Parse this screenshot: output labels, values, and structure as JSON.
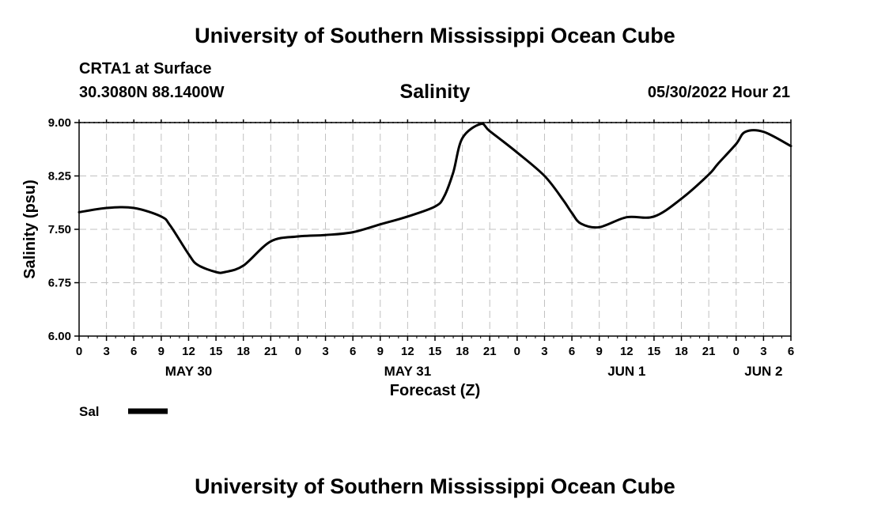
{
  "header": {
    "title": "University of Southern Mississippi Ocean Cube",
    "station": "CRTA1 at Surface",
    "coords": "30.3080N  88.1400W",
    "datetime": "05/30/2022 Hour 21"
  },
  "footer": {
    "title": "University of Southern Mississippi Ocean Cube"
  },
  "legend": {
    "label": "Sal"
  },
  "colors": {
    "line": "#000000",
    "grid": "#c0c0c0"
  },
  "chart_data": {
    "type": "line",
    "title": "Salinity",
    "xlabel": "Forecast (Z)",
    "ylabel": "Salinity (psu)",
    "ylim": [
      6.0,
      9.0
    ],
    "xlim": [
      0,
      78
    ],
    "yticks": [
      "6.00",
      "6.75",
      "7.50",
      "8.25",
      "9.00"
    ],
    "xtick_hours": [
      0,
      3,
      6,
      9,
      12,
      15,
      18,
      21,
      24,
      27,
      30,
      33,
      36,
      39,
      42,
      45,
      48,
      51,
      54,
      57,
      60,
      63,
      66,
      69,
      72,
      75,
      78
    ],
    "xtick_labels": [
      "0",
      "3",
      "6",
      "9",
      "12",
      "15",
      "18",
      "21",
      "0",
      "3",
      "6",
      "9",
      "12",
      "15",
      "18",
      "21",
      "0",
      "3",
      "6",
      "9",
      "12",
      "15",
      "18",
      "21",
      "0",
      "3",
      "6"
    ],
    "date_labels": [
      {
        "hour": 12,
        "label": "MAY 30"
      },
      {
        "hour": 36,
        "label": "MAY 31"
      },
      {
        "hour": 60,
        "label": "JUN 1"
      },
      {
        "hour": 75,
        "label": "JUN 2"
      }
    ],
    "grid": true,
    "series": [
      {
        "name": "Sal",
        "x": [
          0,
          3,
          6,
          9,
          10,
          12,
          13,
          15,
          16,
          18,
          21,
          24,
          27,
          30,
          33,
          36,
          39,
          40,
          41,
          42,
          44,
          45,
          48,
          51,
          53,
          54,
          55,
          57,
          60,
          63,
          66,
          69,
          70,
          72,
          73,
          75,
          78
        ],
        "y": [
          7.74,
          7.8,
          7.8,
          7.68,
          7.55,
          7.15,
          7.0,
          6.9,
          6.9,
          6.99,
          7.33,
          7.4,
          7.42,
          7.46,
          7.57,
          7.68,
          7.82,
          7.96,
          8.3,
          8.78,
          8.98,
          8.88,
          8.58,
          8.25,
          7.92,
          7.73,
          7.58,
          7.53,
          7.67,
          7.68,
          7.93,
          8.27,
          8.42,
          8.7,
          8.87,
          8.87,
          8.67
        ]
      }
    ]
  }
}
